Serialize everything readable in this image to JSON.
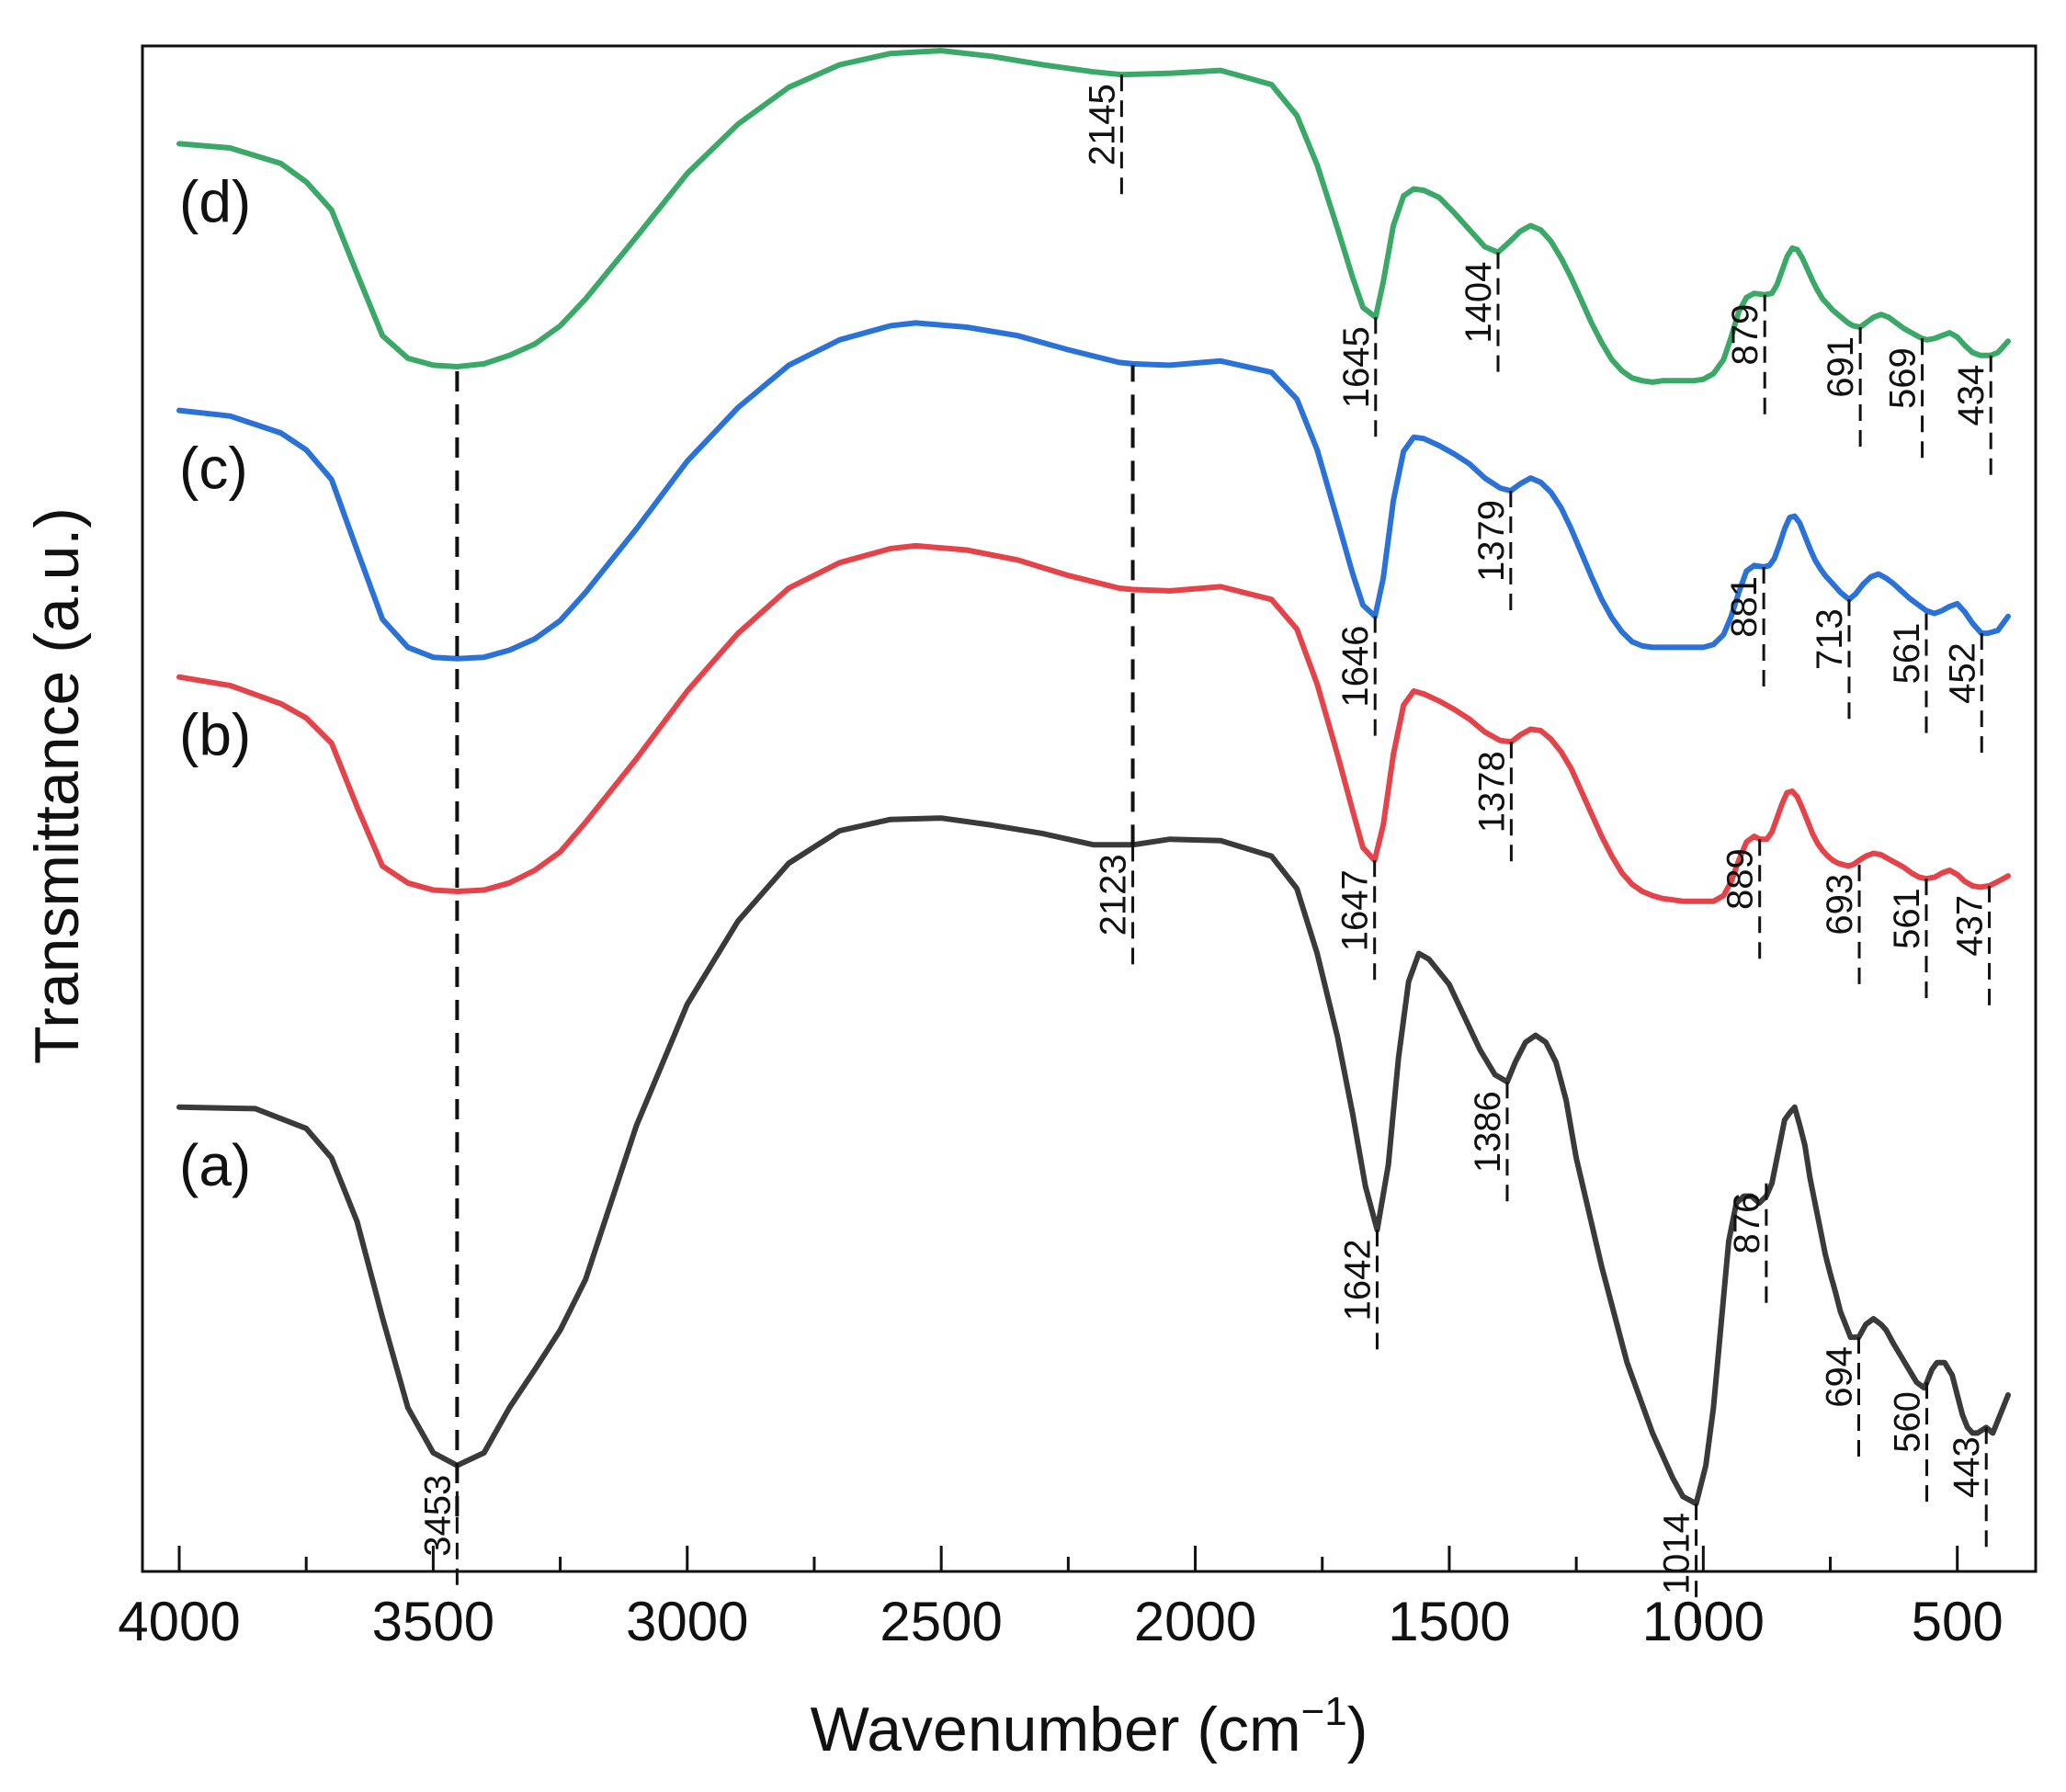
{
  "chart_data": {
    "type": "line",
    "title": "",
    "xlabel": "Wavenumber (cm",
    "xlabel_sup": "−1",
    "xlabel_close": ")",
    "ylabel": "Transmittance (a.u.)",
    "xlim": [
      4000,
      400
    ],
    "ylim": [
      0,
      100
    ],
    "x_ticks": [
      4000,
      3500,
      3000,
      2500,
      2000,
      1500,
      1000,
      500
    ],
    "x_minor_ticks": [
      3750,
      3250,
      2750,
      2250,
      1750,
      1250,
      750
    ],
    "x_tick_labels": [
      "4000",
      "3500",
      "3000",
      "2500",
      "2000",
      "1500",
      "1000",
      "500"
    ],
    "y_ticks_visible": false,
    "grid": false,
    "series": [
      {
        "name": "(a)",
        "color": "#3a3a3a",
        "x": [
          4000,
          3850,
          3750,
          3700,
          3650,
          3600,
          3550,
          3500,
          3453,
          3400,
          3350,
          3300,
          3250,
          3200,
          3100,
          3000,
          2900,
          2800,
          2700,
          2600,
          2500,
          2400,
          2300,
          2200,
          2123,
          2050,
          1950,
          1850,
          1800,
          1760,
          1720,
          1690,
          1665,
          1642,
          1620,
          1600,
          1580,
          1560,
          1540,
          1520,
          1500,
          1470,
          1440,
          1410,
          1386,
          1370,
          1350,
          1330,
          1310,
          1290,
          1270,
          1250,
          1200,
          1150,
          1100,
          1060,
          1040,
          1014,
          995,
          980,
          965,
          950,
          935,
          920,
          905,
          890,
          876,
          865,
          850,
          840,
          830,
          820,
          810,
          800,
          790,
          780,
          770,
          760,
          750,
          740,
          730,
          720,
          710,
          694,
          680,
          665,
          650,
          640,
          625,
          610,
          595,
          580,
          565,
          560,
          550,
          540,
          525,
          510,
          500,
          490,
          480,
          470,
          460,
          443,
          430,
          420,
          410,
          400
        ],
        "y": [
          29.0,
          28.9,
          27.5,
          25.4,
          20.9,
          14.1,
          7.7,
          4.5,
          3.6,
          4.5,
          7.7,
          10.4,
          13.2,
          16.8,
          27.7,
          36.3,
          42.2,
          46.3,
          48.6,
          49.4,
          49.5,
          49.0,
          48.4,
          47.6,
          47.6,
          48.0,
          47.9,
          46.8,
          44.5,
          39.9,
          34.0,
          28.5,
          23.4,
          20.3,
          24.9,
          32.5,
          37.9,
          39.9,
          39.5,
          38.6,
          37.7,
          35.4,
          33.1,
          31.3,
          30.8,
          32.2,
          33.6,
          34.1,
          33.6,
          32.2,
          29.5,
          25.4,
          17.7,
          10.9,
          5.9,
          2.7,
          1.4,
          0.9,
          3.6,
          7.7,
          13.6,
          19.5,
          22.2,
          22.7,
          22.7,
          22.2,
          22.7,
          23.6,
          26.3,
          28.1,
          28.6,
          29.0,
          27.7,
          26.3,
          24.0,
          22.2,
          20.4,
          18.6,
          17.2,
          15.9,
          14.5,
          13.6,
          12.7,
          12.7,
          13.6,
          14.0,
          13.6,
          13.2,
          12.2,
          11.3,
          10.4,
          9.5,
          9.1,
          9.5,
          10.4,
          10.9,
          10.9,
          10.0,
          8.6,
          7.2,
          6.3,
          5.9,
          5.9,
          6.3,
          5.9,
          6.8,
          7.7,
          8.6
        ]
      },
      {
        "name": "(b)",
        "color": "#e5434a",
        "x": [
          4000,
          3900,
          3800,
          3750,
          3700,
          3650,
          3600,
          3550,
          3500,
          3453,
          3400,
          3350,
          3300,
          3250,
          3200,
          3100,
          3000,
          2900,
          2800,
          2700,
          2600,
          2550,
          2450,
          2350,
          2250,
          2150,
          2123,
          2050,
          1950,
          1850,
          1800,
          1760,
          1720,
          1690,
          1670,
          1647,
          1630,
          1610,
          1590,
          1570,
          1550,
          1520,
          1490,
          1460,
          1430,
          1400,
          1378,
          1360,
          1340,
          1320,
          1300,
          1280,
          1260,
          1240,
          1220,
          1200,
          1180,
          1160,
          1140,
          1120,
          1100,
          1080,
          1060,
          1040,
          1020,
          1000,
          980,
          960,
          945,
          930,
          915,
          900,
          889,
          875,
          865,
          855,
          845,
          835,
          825,
          815,
          805,
          795,
          785,
          775,
          765,
          755,
          745,
          735,
          725,
          715,
          705,
          693,
          680,
          665,
          650,
          635,
          620,
          605,
          590,
          575,
          561,
          545,
          530,
          515,
          500,
          485,
          470,
          455,
          437,
          420,
          410,
          400
        ],
        "y": [
          59.5,
          58.9,
          57.6,
          56.6,
          54.8,
          50.3,
          46.1,
          44.9,
          44.4,
          44.3,
          44.4,
          44.9,
          45.8,
          47.1,
          49.2,
          53.7,
          58.5,
          62.6,
          65.8,
          67.6,
          68.6,
          68.8,
          68.5,
          67.8,
          66.7,
          65.8,
          65.7,
          65.6,
          65.9,
          65.0,
          62.9,
          59.0,
          54.0,
          50.0,
          47.4,
          46.5,
          49.0,
          54.0,
          57.5,
          58.5,
          58.3,
          57.8,
          57.2,
          56.5,
          55.6,
          55.0,
          54.9,
          55.4,
          55.8,
          55.7,
          55.1,
          54.2,
          53.0,
          51.4,
          49.8,
          48.2,
          46.8,
          45.6,
          44.8,
          44.3,
          44.0,
          43.8,
          43.7,
          43.6,
          43.6,
          43.6,
          43.6,
          44.0,
          45.0,
          46.5,
          47.8,
          48.2,
          48.0,
          48.0,
          48.5,
          49.5,
          50.5,
          51.3,
          51.4,
          51.0,
          50.2,
          49.3,
          48.4,
          47.7,
          47.2,
          46.8,
          46.5,
          46.3,
          46.2,
          46.1,
          46.2,
          46.5,
          46.8,
          47.0,
          46.9,
          46.6,
          46.3,
          46.0,
          45.6,
          45.3,
          45.2,
          45.3,
          45.6,
          45.8,
          45.5,
          45.0,
          44.7,
          44.6,
          44.7,
          45.0,
          45.2,
          45.4
        ]
      },
      {
        "name": "(c)",
        "color": "#2a72d8",
        "x": [
          4000,
          3900,
          3800,
          3750,
          3700,
          3650,
          3600,
          3550,
          3500,
          3453,
          3400,
          3350,
          3300,
          3250,
          3200,
          3100,
          3000,
          2900,
          2800,
          2700,
          2600,
          2550,
          2450,
          2350,
          2250,
          2150,
          2123,
          2050,
          1950,
          1850,
          1800,
          1760,
          1720,
          1690,
          1670,
          1646,
          1630,
          1610,
          1590,
          1570,
          1550,
          1520,
          1490,
          1460,
          1430,
          1400,
          1379,
          1360,
          1340,
          1320,
          1300,
          1280,
          1260,
          1240,
          1220,
          1200,
          1180,
          1160,
          1140,
          1120,
          1100,
          1080,
          1060,
          1040,
          1020,
          1000,
          980,
          960,
          945,
          930,
          915,
          900,
          881,
          870,
          860,
          850,
          840,
          830,
          820,
          810,
          800,
          790,
          780,
          770,
          760,
          750,
          740,
          730,
          720,
          713,
          700,
          685,
          670,
          655,
          640,
          625,
          610,
          595,
          580,
          561,
          545,
          530,
          515,
          500,
          485,
          470,
          455,
          452,
          440,
          420,
          410,
          400
        ],
        "y": [
          78.4,
          78.0,
          76.8,
          75.6,
          73.5,
          68.5,
          63.6,
          61.6,
          60.9,
          60.8,
          60.9,
          61.4,
          62.2,
          63.5,
          65.5,
          70.0,
          74.8,
          78.6,
          81.6,
          83.4,
          84.4,
          84.6,
          84.3,
          83.7,
          82.7,
          81.8,
          81.7,
          81.6,
          81.9,
          81.1,
          79.2,
          75.6,
          70.6,
          66.8,
          64.6,
          63.8,
          66.5,
          72.0,
          75.5,
          76.5,
          76.4,
          75.9,
          75.3,
          74.6,
          73.6,
          72.9,
          72.7,
          73.2,
          73.6,
          73.3,
          72.6,
          71.5,
          70.0,
          68.3,
          66.6,
          65.0,
          63.7,
          62.7,
          62.0,
          61.7,
          61.6,
          61.6,
          61.6,
          61.6,
          61.6,
          61.6,
          61.8,
          62.5,
          63.8,
          65.5,
          67.0,
          67.4,
          67.3,
          67.4,
          67.9,
          68.9,
          70.0,
          70.8,
          70.9,
          70.4,
          69.5,
          68.6,
          67.8,
          67.2,
          66.7,
          66.3,
          65.9,
          65.5,
          65.2,
          65.0,
          65.4,
          66.1,
          66.6,
          66.8,
          66.5,
          66.1,
          65.6,
          65.1,
          64.7,
          64.2,
          64.0,
          64.2,
          64.5,
          64.7,
          64.1,
          63.3,
          62.7,
          62.6,
          62.6,
          62.8,
          63.3,
          63.8
        ]
      },
      {
        "name": "(d)",
        "color": "#3aa867",
        "x": [
          4000,
          3900,
          3800,
          3750,
          3700,
          3650,
          3600,
          3550,
          3500,
          3453,
          3400,
          3350,
          3300,
          3250,
          3200,
          3100,
          3000,
          2900,
          2800,
          2700,
          2600,
          2500,
          2400,
          2300,
          2200,
          2145,
          2050,
          1950,
          1850,
          1800,
          1760,
          1720,
          1690,
          1670,
          1645,
          1630,
          1610,
          1590,
          1570,
          1550,
          1520,
          1490,
          1460,
          1430,
          1404,
          1380,
          1360,
          1340,
          1320,
          1300,
          1280,
          1260,
          1240,
          1220,
          1200,
          1180,
          1160,
          1140,
          1120,
          1100,
          1080,
          1060,
          1040,
          1020,
          1000,
          980,
          960,
          945,
          930,
          915,
          900,
          879,
          865,
          855,
          845,
          835,
          825,
          815,
          805,
          795,
          785,
          775,
          765,
          755,
          745,
          735,
          725,
          715,
          705,
          691,
          680,
          665,
          650,
          635,
          620,
          605,
          590,
          575,
          569,
          560,
          545,
          530,
          515,
          500,
          485,
          470,
          455,
          434,
          420,
          410,
          400
        ],
        "y": [
          97.3,
          97.0,
          95.9,
          94.6,
          92.6,
          88.1,
          83.7,
          82.1,
          81.6,
          81.5,
          81.7,
          82.3,
          83.1,
          84.4,
          86.3,
          90.7,
          95.2,
          98.7,
          101.3,
          102.9,
          103.7,
          103.9,
          103.5,
          102.9,
          102.4,
          102.2,
          102.3,
          102.5,
          101.5,
          99.3,
          95.8,
          91.3,
          87.8,
          85.7,
          85.0,
          87.5,
          91.5,
          93.6,
          94.1,
          94.0,
          93.5,
          92.4,
          91.2,
          90.0,
          89.6,
          90.4,
          91.1,
          91.5,
          91.2,
          90.4,
          89.2,
          87.8,
          86.2,
          84.6,
          83.2,
          82.0,
          81.2,
          80.7,
          80.5,
          80.4,
          80.5,
          80.5,
          80.5,
          80.5,
          80.6,
          81.0,
          82.0,
          83.6,
          85.4,
          86.4,
          86.7,
          86.6,
          86.7,
          87.3,
          88.3,
          89.3,
          89.9,
          89.8,
          89.2,
          88.4,
          87.6,
          86.9,
          86.3,
          85.9,
          85.5,
          85.2,
          84.9,
          84.6,
          84.4,
          84.3,
          84.6,
          85.0,
          85.2,
          85.0,
          84.6,
          84.2,
          83.9,
          83.6,
          83.5,
          83.4,
          83.5,
          83.7,
          83.9,
          83.6,
          83.0,
          82.5,
          82.3,
          82.3,
          82.5,
          82.9,
          83.3
        ]
      }
    ],
    "guide_lines": [
      {
        "x": 3453,
        "y_from": 0,
        "y_to": 82.0
      },
      {
        "x": 2123,
        "y_from": 47.6,
        "y_to": 81.6
      }
    ],
    "annotations": [
      {
        "series": "(a)",
        "label": "3453",
        "x": 3453,
        "tick_y": 3.6
      },
      {
        "series": "(a)",
        "label": "2123",
        "x": 2123,
        "tick_y": 47.6
      },
      {
        "series": "(a)",
        "label": "1642",
        "x": 1642,
        "tick_y": 20.3
      },
      {
        "series": "(a)",
        "label": "1386",
        "x": 1386,
        "tick_y": 30.8
      },
      {
        "series": "(a)",
        "label": "1014",
        "x": 1014,
        "tick_y": 0.9
      },
      {
        "series": "(a)",
        "label": "876",
        "x": 876,
        "tick_y": 23.6
      },
      {
        "series": "(a)",
        "label": "694",
        "x": 694,
        "tick_y": 12.7
      },
      {
        "series": "(a)",
        "label": "560",
        "x": 560,
        "tick_y": 9.5
      },
      {
        "series": "(a)",
        "label": "443",
        "x": 443,
        "tick_y": 6.3
      },
      {
        "series": "(b)",
        "label": "1647",
        "x": 1647,
        "tick_y": 46.5
      },
      {
        "series": "(b)",
        "label": "1378",
        "x": 1378,
        "tick_y": 54.9
      },
      {
        "series": "(b)",
        "label": "889",
        "x": 889,
        "tick_y": 48.0
      },
      {
        "series": "(b)",
        "label": "693",
        "x": 693,
        "tick_y": 46.2
      },
      {
        "series": "(b)",
        "label": "561",
        "x": 561,
        "tick_y": 45.2
      },
      {
        "series": "(b)",
        "label": "437",
        "x": 437,
        "tick_y": 44.7
      },
      {
        "series": "(c)",
        "label": "1646",
        "x": 1646,
        "tick_y": 63.8
      },
      {
        "series": "(c)",
        "label": "1379",
        "x": 1379,
        "tick_y": 72.7
      },
      {
        "series": "(c)",
        "label": "881",
        "x": 881,
        "tick_y": 67.3
      },
      {
        "series": "(c)",
        "label": "713",
        "x": 713,
        "tick_y": 65.0
      },
      {
        "series": "(c)",
        "label": "561",
        "x": 561,
        "tick_y": 64.0
      },
      {
        "series": "(c)",
        "label": "452",
        "x": 452,
        "tick_y": 62.6
      },
      {
        "series": "(d)",
        "label": "2145",
        "x": 2145,
        "tick_y": 102.2
      },
      {
        "series": "(d)",
        "label": "1645",
        "x": 1645,
        "tick_y": 85.0
      },
      {
        "series": "(d)",
        "label": "1404",
        "x": 1404,
        "tick_y": 89.6
      },
      {
        "series": "(d)",
        "label": "879",
        "x": 879,
        "tick_y": 86.6
      },
      {
        "series": "(d)",
        "label": "691",
        "x": 691,
        "tick_y": 84.3
      },
      {
        "series": "(d)",
        "label": "569",
        "x": 569,
        "tick_y": 83.5
      },
      {
        "series": "(d)",
        "label": "434",
        "x": 434,
        "tick_y": 82.3
      }
    ]
  }
}
